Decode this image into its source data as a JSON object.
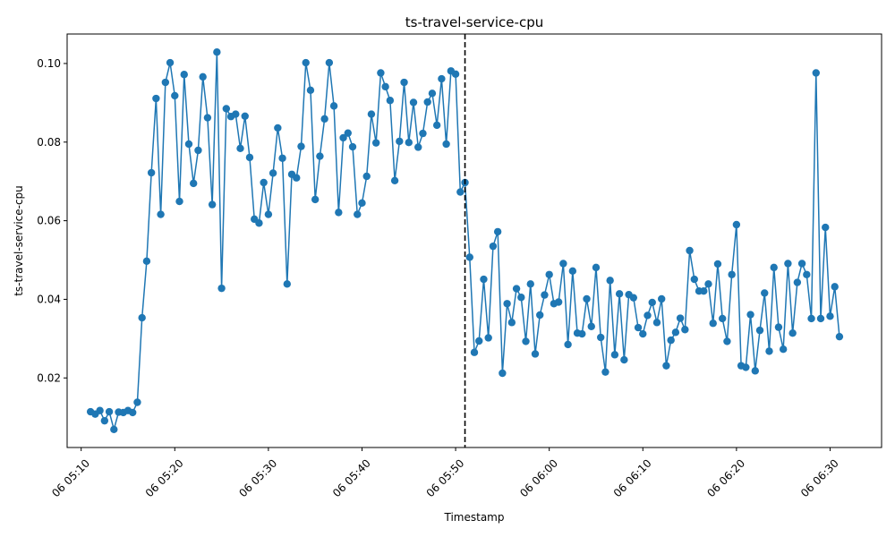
{
  "chart_data": {
    "type": "line",
    "title": "ts-travel-service-cpu",
    "xlabel": "Timestamp",
    "ylabel": "ts-travel-service-cpu",
    "x_ticks": [
      "06 05:10",
      "06 05:20",
      "06 05:30",
      "06 05:40",
      "06 05:50",
      "06 06:00",
      "06 06:10",
      "06 06:20",
      "06 06:30"
    ],
    "y_ticks": [
      "0.02",
      "0.04",
      "0.06",
      "0.08",
      "0.10"
    ],
    "y_tick_values": [
      0.02,
      0.04,
      0.06,
      0.08,
      0.1
    ],
    "xlim": [
      "05:08.5",
      "06:35.5"
    ],
    "ylim": [
      0.0023,
      0.1075
    ],
    "grid": false,
    "line_color": "#1f77b4",
    "marker": "circle",
    "vline": {
      "x": "05:51",
      "style": "dashed",
      "color": "#000000"
    },
    "series": [
      {
        "x": [
          "05:11",
          "05:11.5",
          "05:12",
          "05:12.5",
          "05:13",
          "05:13.5",
          "05:14",
          "05:14.5",
          "05:15",
          "05:15.5",
          "05:16",
          "05:16.5",
          "05:17",
          "05:17.5",
          "05:18",
          "05:18.5",
          "05:19",
          "05:19.5",
          "05:20",
          "05:20.5",
          "05:21",
          "05:21.5",
          "05:22",
          "05:22.5",
          "05:23",
          "05:23.5",
          "05:24",
          "05:24.5",
          "05:25",
          "05:25.5",
          "05:26",
          "05:26.5",
          "05:27",
          "05:27.5",
          "05:28",
          "05:28.5",
          "05:29",
          "05:29.5",
          "05:30",
          "05:30.5",
          "05:31",
          "05:31.5",
          "05:32",
          "05:32.5",
          "05:33",
          "05:33.5",
          "05:34",
          "05:34.5",
          "05:35",
          "05:35.5",
          "05:36",
          "05:36.5",
          "05:37",
          "05:37.5",
          "05:38",
          "05:38.5",
          "05:39",
          "05:39.5",
          "05:40",
          "05:40.5",
          "05:41",
          "05:41.5",
          "05:42",
          "05:42.5",
          "05:43",
          "05:43.5",
          "05:44",
          "05:44.5",
          "05:45",
          "05:45.5",
          "05:46",
          "05:46.5",
          "05:47",
          "05:47.5",
          "05:48",
          "05:48.5",
          "05:49",
          "05:49.5",
          "05:50",
          "05:50.5",
          "05:51",
          "05:51.5",
          "05:52",
          "05:52.5",
          "05:53",
          "05:53.5",
          "05:54",
          "05:54.5",
          "05:55",
          "05:55.5",
          "05:56",
          "05:56.5",
          "05:57",
          "05:57.5",
          "05:58",
          "05:58.5",
          "05:59",
          "05:59.5",
          "06:00",
          "06:00.5",
          "06:01",
          "06:01.5",
          "06:02",
          "06:02.5",
          "06:03",
          "06:03.5",
          "06:04",
          "06:04.5",
          "06:05",
          "06:05.5",
          "06:06",
          "06:06.5",
          "06:07",
          "06:07.5",
          "06:08",
          "06:08.5",
          "06:09",
          "06:09.5",
          "06:10",
          "06:10.5",
          "06:11",
          "06:11.5",
          "06:12",
          "06:12.5",
          "06:13",
          "06:13.5",
          "06:14",
          "06:14.5",
          "06:15",
          "06:15.5",
          "06:16",
          "06:16.5",
          "06:17",
          "06:17.5",
          "06:18",
          "06:18.5",
          "06:19",
          "06:19.5",
          "06:20",
          "06:20.5",
          "06:21",
          "06:21.5",
          "06:22",
          "06:22.5",
          "06:23",
          "06:23.5",
          "06:24",
          "06:24.5",
          "06:25",
          "06:25.5",
          "06:26",
          "06:26.5",
          "06:27",
          "06:27.5",
          "06:28",
          "06:28.5",
          "06:29",
          "06:29.5",
          "06:30",
          "06:30.5",
          "06:31"
        ],
        "values": [
          0.0114,
          0.0108,
          0.0117,
          0.0091,
          0.0114,
          0.0069,
          0.0113,
          0.0112,
          0.0117,
          0.0112,
          0.0138,
          0.0353,
          0.0497,
          0.0722,
          0.0911,
          0.0616,
          0.0952,
          0.1002,
          0.0918,
          0.0649,
          0.0972,
          0.0795,
          0.0695,
          0.0779,
          0.0966,
          0.0862,
          0.0641,
          0.1029,
          0.0428,
          0.0885,
          0.0865,
          0.0871,
          0.0784,
          0.0866,
          0.0761,
          0.0604,
          0.0594,
          0.0697,
          0.0616,
          0.0721,
          0.0836,
          0.0759,
          0.0439,
          0.0718,
          0.0709,
          0.0789,
          0.1002,
          0.0932,
          0.0654,
          0.0764,
          0.0859,
          0.1002,
          0.0892,
          0.0621,
          0.0811,
          0.0823,
          0.0788,
          0.0616,
          0.0645,
          0.0713,
          0.0871,
          0.0798,
          0.0976,
          0.0941,
          0.0906,
          0.0702,
          0.0802,
          0.0952,
          0.0799,
          0.0901,
          0.0787,
          0.0822,
          0.0902,
          0.0924,
          0.0843,
          0.0961,
          0.0795,
          0.0981,
          0.0973,
          0.0673,
          0.0697,
          0.0507,
          0.0265,
          0.0294,
          0.0451,
          0.0302,
          0.0535,
          0.0572,
          0.0212,
          0.0389,
          0.0341,
          0.0427,
          0.0405,
          0.0293,
          0.0439,
          0.0261,
          0.036,
          0.0411,
          0.0463,
          0.0389,
          0.0393,
          0.0491,
          0.0285,
          0.0472,
          0.0314,
          0.0312,
          0.0401,
          0.0331,
          0.0481,
          0.0303,
          0.0215,
          0.0448,
          0.0259,
          0.0414,
          0.0246,
          0.0412,
          0.0404,
          0.0328,
          0.0312,
          0.0359,
          0.0392,
          0.0341,
          0.0401,
          0.0231,
          0.0296,
          0.0316,
          0.0352,
          0.0323,
          0.0524,
          0.0451,
          0.0421,
          0.0421,
          0.0439,
          0.0339,
          0.049,
          0.0351,
          0.0293,
          0.0463,
          0.059,
          0.0231,
          0.0227,
          0.0361,
          0.0218,
          0.0321,
          0.0416,
          0.0268,
          0.0481,
          0.0329,
          0.0273,
          0.0491,
          0.0314,
          0.0443,
          0.0491,
          0.0463,
          0.0351,
          0.0976,
          0.0351,
          0.0583,
          0.0357,
          0.0432,
          0.0305
        ]
      }
    ]
  }
}
